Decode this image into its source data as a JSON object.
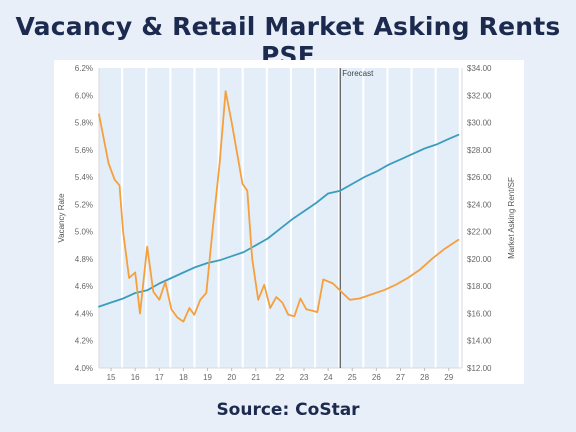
{
  "title": "Vacancy & Retail Market Asking Rents PSF",
  "source": "Source: CoStar",
  "colors": {
    "background": "#e9eff8",
    "title": "#1b2a4e",
    "vacancy_line": "#3b9dbd",
    "rent_line": "#f5a03c",
    "band": "#e4eef9"
  },
  "chart_data": {
    "type": "line",
    "x_ticks": [
      "15",
      "16",
      "17",
      "18",
      "19",
      "20",
      "21",
      "22",
      "23",
      "24",
      "25",
      "26",
      "27",
      "28",
      "29"
    ],
    "x_range": [
      2014.5,
      2029.55
    ],
    "ylabel_left": "Vacancy Rate",
    "ylabel_right": "Market Asking Rent/SF",
    "y_left_ticks": [
      "4.0%",
      "4.2%",
      "4.4%",
      "4.6%",
      "4.8%",
      "5.0%",
      "5.2%",
      "5.4%",
      "5.6%",
      "5.8%",
      "6.0%",
      "6.2%"
    ],
    "y_left_range": [
      4.0,
      6.2
    ],
    "y_right_ticks": [
      "$12.00",
      "$14.00",
      "$16.00",
      "$18.00",
      "$20.00",
      "$22.00",
      "$24.00",
      "$26.00",
      "$28.00",
      "$30.00",
      "$32.00",
      "$34.00"
    ],
    "y_right_range": [
      12,
      34
    ],
    "forecast_label": "Forecast",
    "forecast_x": 2024.5,
    "series": [
      {
        "axis": "right",
        "color": "#3b9dbd",
        "points": [
          [
            2014.5,
            16.5
          ],
          [
            2015.0,
            16.8
          ],
          [
            2015.5,
            17.1
          ],
          [
            2016.0,
            17.5
          ],
          [
            2016.5,
            17.7
          ],
          [
            2017.0,
            18.2
          ],
          [
            2017.5,
            18.6
          ],
          [
            2018.0,
            19.0
          ],
          [
            2018.5,
            19.4
          ],
          [
            2019.0,
            19.7
          ],
          [
            2019.5,
            19.9
          ],
          [
            2020.0,
            20.2
          ],
          [
            2020.5,
            20.5
          ],
          [
            2021.0,
            21.0
          ],
          [
            2021.5,
            21.5
          ],
          [
            2022.0,
            22.2
          ],
          [
            2022.5,
            22.9
          ],
          [
            2023.0,
            23.5
          ],
          [
            2023.5,
            24.1
          ],
          [
            2024.0,
            24.8
          ],
          [
            2024.5,
            25.0
          ],
          [
            2025.0,
            25.5
          ],
          [
            2025.5,
            26.0
          ],
          [
            2026.0,
            26.4
          ],
          [
            2026.5,
            26.9
          ],
          [
            2027.0,
            27.3
          ],
          [
            2027.5,
            27.7
          ],
          [
            2028.0,
            28.1
          ],
          [
            2028.5,
            28.4
          ],
          [
            2029.0,
            28.8
          ],
          [
            2029.4,
            29.1
          ]
        ]
      },
      {
        "axis": "left",
        "color": "#f5a03c",
        "points": [
          [
            2014.5,
            5.86
          ],
          [
            2014.9,
            5.5
          ],
          [
            2015.15,
            5.38
          ],
          [
            2015.35,
            5.34
          ],
          [
            2015.5,
            5.0
          ],
          [
            2015.75,
            4.66
          ],
          [
            2016.0,
            4.7
          ],
          [
            2016.2,
            4.4
          ],
          [
            2016.5,
            4.89
          ],
          [
            2016.75,
            4.56
          ],
          [
            2017.0,
            4.5
          ],
          [
            2017.25,
            4.63
          ],
          [
            2017.5,
            4.43
          ],
          [
            2017.75,
            4.37
          ],
          [
            2018.0,
            4.34
          ],
          [
            2018.25,
            4.44
          ],
          [
            2018.45,
            4.39
          ],
          [
            2018.7,
            4.5
          ],
          [
            2018.95,
            4.55
          ],
          [
            2019.2,
            5.0
          ],
          [
            2019.5,
            5.5
          ],
          [
            2019.75,
            6.03
          ],
          [
            2020.0,
            5.8
          ],
          [
            2020.2,
            5.6
          ],
          [
            2020.45,
            5.35
          ],
          [
            2020.65,
            5.3
          ],
          [
            2020.85,
            4.8
          ],
          [
            2021.1,
            4.5
          ],
          [
            2021.35,
            4.61
          ],
          [
            2021.6,
            4.44
          ],
          [
            2021.85,
            4.52
          ],
          [
            2022.1,
            4.48
          ],
          [
            2022.35,
            4.39
          ],
          [
            2022.6,
            4.38
          ],
          [
            2022.85,
            4.51
          ],
          [
            2023.1,
            4.43
          ],
          [
            2023.35,
            4.42
          ],
          [
            2023.55,
            4.41
          ],
          [
            2023.8,
            4.65
          ],
          [
            2024.2,
            4.62
          ],
          [
            2024.6,
            4.55
          ],
          [
            2024.9,
            4.5
          ],
          [
            2025.3,
            4.51
          ],
          [
            2025.8,
            4.54
          ],
          [
            2026.3,
            4.57
          ],
          [
            2026.8,
            4.61
          ],
          [
            2027.3,
            4.66
          ],
          [
            2027.8,
            4.72
          ],
          [
            2028.3,
            4.8
          ],
          [
            2028.8,
            4.87
          ],
          [
            2029.4,
            4.94
          ]
        ]
      }
    ]
  }
}
